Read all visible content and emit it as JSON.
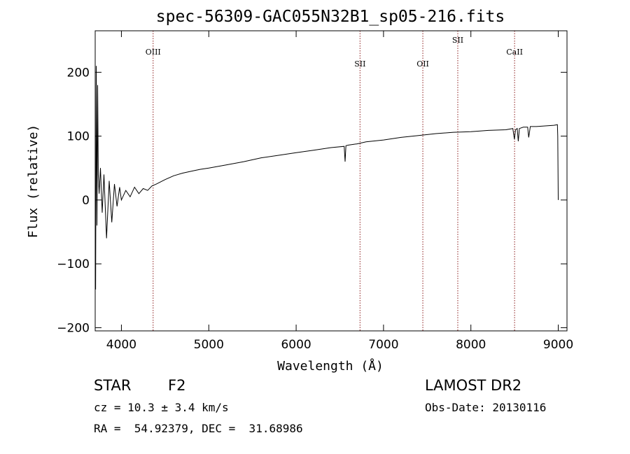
{
  "chart_data": {
    "type": "line",
    "title": "spec-56309-GAC055N32B1_sp05-216.fits",
    "xlabel": "Wavelength (Å)",
    "ylabel": "Flux (relative)",
    "xlim": [
      3700,
      9100
    ],
    "ylim": [
      -205,
      265
    ],
    "x_ticks": [
      4000,
      5000,
      6000,
      7000,
      8000,
      9000
    ],
    "y_ticks": [
      -200,
      -100,
      0,
      100,
      200
    ],
    "grid": false,
    "line_color": "#000000",
    "marker_color": "#8b1a1a",
    "series": [
      {
        "x": [
          3705,
          3712,
          3720,
          3728,
          3735,
          3745,
          3760,
          3780,
          3800,
          3830,
          3860,
          3890,
          3920,
          3950,
          3980,
          4000,
          4050,
          4100,
          4150,
          4200,
          4250,
          4300,
          4350,
          4400,
          4500,
          4600,
          4700,
          4800,
          4900,
          5000,
          5200,
          5400,
          5600,
          5800,
          6000,
          6200,
          6400,
          6550,
          6560,
          6570,
          6600,
          6700,
          6800,
          7000,
          7200,
          7400,
          7600,
          7800,
          8000,
          8200,
          8400,
          8480,
          8498,
          8510,
          8530,
          8542,
          8555,
          8600,
          8650,
          8662,
          8680,
          8750,
          8850,
          8950,
          8990,
          8994,
          9000
        ],
        "y": [
          -140,
          210,
          -40,
          180,
          40,
          10,
          50,
          -20,
          40,
          -60,
          30,
          -35,
          25,
          -10,
          20,
          0,
          15,
          5,
          20,
          10,
          18,
          15,
          22,
          25,
          32,
          38,
          42,
          45,
          48,
          50,
          55,
          60,
          66,
          70,
          74,
          78,
          82,
          84,
          60,
          85,
          86,
          88,
          91,
          94,
          98,
          101,
          104,
          106,
          107,
          109,
          110,
          112,
          95,
          110,
          112,
          92,
          112,
          114,
          114,
          98,
          115,
          115,
          116,
          117,
          118,
          100,
          0
        ]
      }
    ],
    "line_markers": [
      {
        "label": "OIII",
        "x": 4363
      },
      {
        "label": "SII",
        "x": 6731
      },
      {
        "label": "OII",
        "x": 7450
      },
      {
        "label": "SII",
        "x": 7850
      },
      {
        "label": "CaII",
        "x": 8500
      }
    ]
  },
  "info": {
    "object_type": "STAR",
    "spectral_class": "F2",
    "survey": "LAMOST DR2",
    "redshift": "cz = 10.3 ± 3.4 km/s",
    "obs_date": "Obs-Date: 20130116",
    "coordinates": "RA =  54.92379, DEC =  31.68986"
  }
}
